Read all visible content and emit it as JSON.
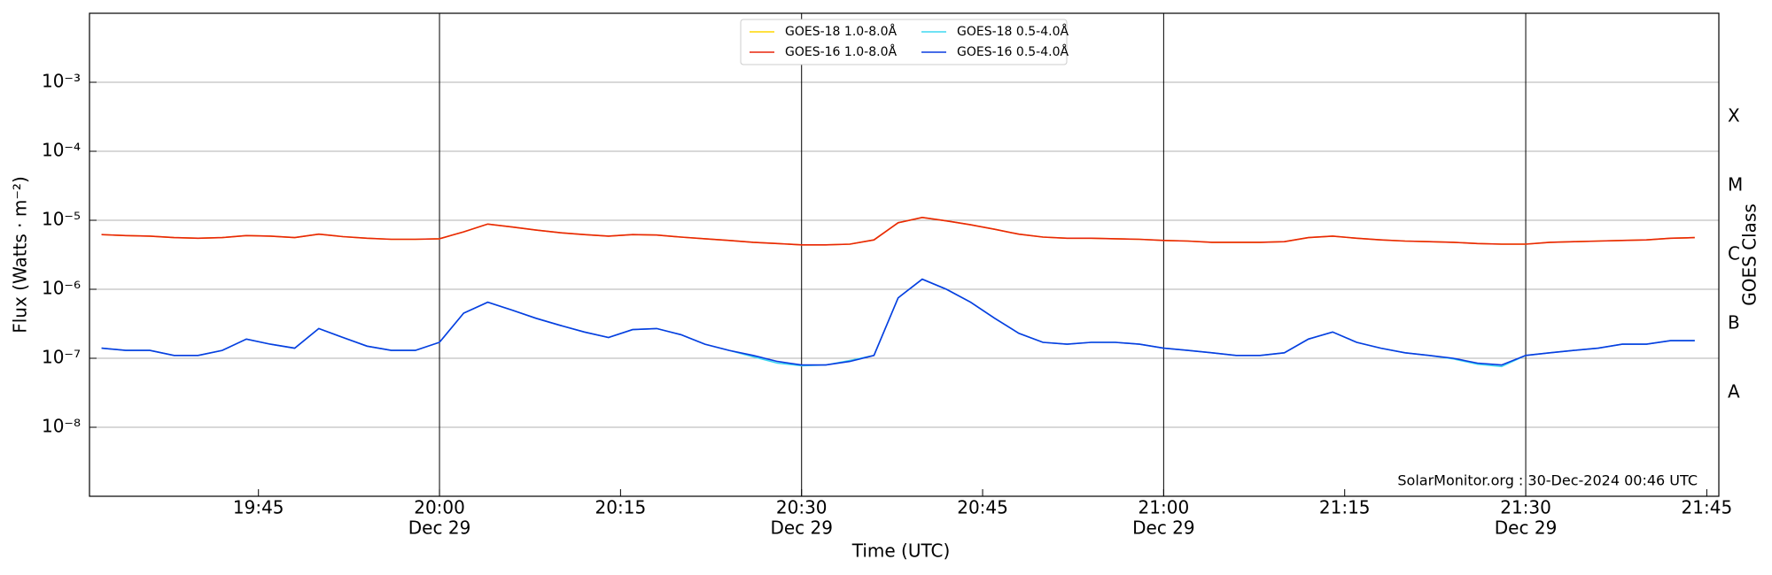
{
  "chart_data": {
    "type": "line",
    "xlabel": "Time (UTC)",
    "ylabel": "Flux (Watts · m⁻²)",
    "y2label": "GOES Class",
    "annotation": "SolarMonitor.org : 30-Dec-2024 00:46 UTC",
    "log_y": true,
    "grid": true,
    "legend": "upper center",
    "xlim": [
      "19:31",
      "21:46"
    ],
    "xticks": [
      {
        "value": "19:45",
        "label": "19:45"
      },
      {
        "value": "20:00",
        "label": "20:00",
        "date": "Dec 29"
      },
      {
        "value": "20:15",
        "label": "20:15"
      },
      {
        "value": "20:30",
        "label": "20:30",
        "date": "Dec 29"
      },
      {
        "value": "20:45",
        "label": "20:45"
      },
      {
        "value": "21:00",
        "label": "21:00",
        "date": "Dec 29"
      },
      {
        "value": "21:15",
        "label": "21:15"
      },
      {
        "value": "21:30",
        "label": "21:30",
        "date": "Dec 29"
      },
      {
        "value": "21:45",
        "label": "21:45"
      }
    ],
    "vlines": [
      "20:00",
      "20:30",
      "21:00",
      "21:30"
    ],
    "ylim": [
      1e-09,
      0.01
    ],
    "yticks": [
      {
        "value": 1e-08,
        "label": "10⁻⁸"
      },
      {
        "value": 1e-07,
        "label": "10⁻⁷"
      },
      {
        "value": 1e-06,
        "label": "10⁻⁶"
      },
      {
        "value": 1e-05,
        "label": "10⁻⁵"
      },
      {
        "value": 0.0001,
        "label": "10⁻⁴"
      },
      {
        "value": 0.001,
        "label": "10⁻³"
      }
    ],
    "y2lim": [
      1e-09,
      0.01
    ],
    "y2ticks": [
      {
        "value": 3.16e-08,
        "label": "A"
      },
      {
        "value": 3.16e-07,
        "label": "B"
      },
      {
        "value": 3.16e-06,
        "label": "C"
      },
      {
        "value": 3.16e-05,
        "label": "M"
      },
      {
        "value": 0.000316,
        "label": "X"
      }
    ],
    "x": [
      "19:32",
      "19:34",
      "19:36",
      "19:38",
      "19:40",
      "19:42",
      "19:44",
      "19:46",
      "19:48",
      "19:50",
      "19:52",
      "19:54",
      "19:56",
      "19:58",
      "20:00",
      "20:02",
      "20:04",
      "20:06",
      "20:08",
      "20:10",
      "20:12",
      "20:14",
      "20:16",
      "20:18",
      "20:20",
      "20:22",
      "20:24",
      "20:26",
      "20:28",
      "20:30",
      "20:32",
      "20:34",
      "20:36",
      "20:38",
      "20:40",
      "20:42",
      "20:44",
      "20:46",
      "20:48",
      "20:50",
      "20:52",
      "20:54",
      "20:56",
      "20:58",
      "21:00",
      "21:02",
      "21:04",
      "21:06",
      "21:08",
      "21:10",
      "21:12",
      "21:14",
      "21:16",
      "21:18",
      "21:20",
      "21:22",
      "21:24",
      "21:26",
      "21:28",
      "21:30",
      "21:32",
      "21:34",
      "21:36",
      "21:38",
      "21:40",
      "21:42",
      "21:44"
    ],
    "series": [
      {
        "name": "GOES-18 1.0-8.0Å",
        "color": "#ffd700",
        "values": [
          6.2e-06,
          6e-06,
          5.9e-06,
          5.6e-06,
          5.5e-06,
          5.6e-06,
          6e-06,
          5.9e-06,
          5.6e-06,
          6.3e-06,
          5.8e-06,
          5.5e-06,
          5.3e-06,
          5.3e-06,
          5.4e-06,
          6.8e-06,
          8.8e-06,
          8e-06,
          7.2e-06,
          6.6e-06,
          6.2e-06,
          5.9e-06,
          6.2e-06,
          6.1e-06,
          5.7e-06,
          5.4e-06,
          5.1e-06,
          4.8e-06,
          4.6e-06,
          4.4e-06,
          4.4e-06,
          4.5e-06,
          5.2e-06,
          9.2e-06,
          1.1e-05,
          9.8e-06,
          8.6e-06,
          7.4e-06,
          6.3e-06,
          5.7e-06,
          5.5e-06,
          5.5e-06,
          5.4e-06,
          5.3e-06,
          5.1e-06,
          5e-06,
          4.8e-06,
          4.8e-06,
          4.8e-06,
          4.9e-06,
          5.6e-06,
          5.9e-06,
          5.5e-06,
          5.2e-06,
          5e-06,
          4.9e-06,
          4.8e-06,
          4.6e-06,
          4.5e-06,
          4.5e-06,
          4.8e-06,
          4.9e-06,
          5e-06,
          5.1e-06,
          5.2e-06,
          5.5e-06,
          5.6e-06
        ]
      },
      {
        "name": "GOES-16 1.0-8.0Å",
        "color": "#e8250b",
        "values": [
          6.2e-06,
          6e-06,
          5.9e-06,
          5.6e-06,
          5.5e-06,
          5.6e-06,
          6e-06,
          5.9e-06,
          5.6e-06,
          6.3e-06,
          5.8e-06,
          5.5e-06,
          5.3e-06,
          5.3e-06,
          5.4e-06,
          6.8e-06,
          8.8e-06,
          8e-06,
          7.2e-06,
          6.6e-06,
          6.2e-06,
          5.9e-06,
          6.2e-06,
          6.1e-06,
          5.7e-06,
          5.4e-06,
          5.1e-06,
          4.8e-06,
          4.6e-06,
          4.4e-06,
          4.4e-06,
          4.5e-06,
          5.2e-06,
          9.2e-06,
          1.1e-05,
          9.8e-06,
          8.6e-06,
          7.4e-06,
          6.3e-06,
          5.7e-06,
          5.5e-06,
          5.5e-06,
          5.4e-06,
          5.3e-06,
          5.1e-06,
          5e-06,
          4.8e-06,
          4.8e-06,
          4.8e-06,
          4.9e-06,
          5.6e-06,
          5.9e-06,
          5.5e-06,
          5.2e-06,
          5e-06,
          4.9e-06,
          4.8e-06,
          4.6e-06,
          4.5e-06,
          4.5e-06,
          4.8e-06,
          4.9e-06,
          5e-06,
          5.1e-06,
          5.2e-06,
          5.5e-06,
          5.6e-06
        ]
      },
      {
        "name": "GOES-18 0.5-4.0Å",
        "color": "#3fd8f0",
        "values": [
          1.4e-07,
          1.3e-07,
          1.3e-07,
          1.1e-07,
          1.1e-07,
          1.3e-07,
          1.9e-07,
          1.6e-07,
          1.4e-07,
          2.7e-07,
          2e-07,
          1.5e-07,
          1.3e-07,
          1.3e-07,
          1.7e-07,
          4.5e-07,
          6.5e-07,
          5e-07,
          3.8e-07,
          3e-07,
          2.4e-07,
          2e-07,
          2.6e-07,
          2.7e-07,
          2.2e-07,
          1.6e-07,
          1.3e-07,
          1.05e-07,
          8.5e-08,
          7.8e-08,
          8e-08,
          9.3e-08,
          1.1e-07,
          7.5e-07,
          1.4e-06,
          1e-06,
          6.5e-07,
          3.8e-07,
          2.3e-07,
          1.7e-07,
          1.6e-07,
          1.7e-07,
          1.7e-07,
          1.6e-07,
          1.4e-07,
          1.3e-07,
          1.2e-07,
          1.1e-07,
          1.1e-07,
          1.2e-07,
          1.9e-07,
          2.4e-07,
          1.7e-07,
          1.4e-07,
          1.2e-07,
          1.1e-07,
          9.8e-08,
          8.2e-08,
          7.6e-08,
          1.1e-07,
          1.2e-07,
          1.3e-07,
          1.4e-07,
          1.6e-07,
          1.6e-07,
          1.8e-07,
          1.8e-07
        ]
      },
      {
        "name": "GOES-16 0.5-4.0Å",
        "color": "#0a3be0",
        "values": [
          1.4e-07,
          1.3e-07,
          1.3e-07,
          1.1e-07,
          1.1e-07,
          1.3e-07,
          1.9e-07,
          1.6e-07,
          1.4e-07,
          2.7e-07,
          2e-07,
          1.5e-07,
          1.3e-07,
          1.3e-07,
          1.7e-07,
          4.5e-07,
          6.5e-07,
          5e-07,
          3.8e-07,
          3e-07,
          2.4e-07,
          2e-07,
          2.6e-07,
          2.7e-07,
          2.2e-07,
          1.6e-07,
          1.3e-07,
          1.1e-07,
          9e-08,
          8e-08,
          8e-08,
          9e-08,
          1.1e-07,
          7.5e-07,
          1.4e-06,
          1e-06,
          6.5e-07,
          3.8e-07,
          2.3e-07,
          1.7e-07,
          1.6e-07,
          1.7e-07,
          1.7e-07,
          1.6e-07,
          1.4e-07,
          1.3e-07,
          1.2e-07,
          1.1e-07,
          1.1e-07,
          1.2e-07,
          1.9e-07,
          2.4e-07,
          1.7e-07,
          1.4e-07,
          1.2e-07,
          1.1e-07,
          1e-07,
          8.5e-08,
          8e-08,
          1.1e-07,
          1.2e-07,
          1.3e-07,
          1.4e-07,
          1.6e-07,
          1.6e-07,
          1.8e-07,
          1.8e-07
        ]
      }
    ]
  }
}
